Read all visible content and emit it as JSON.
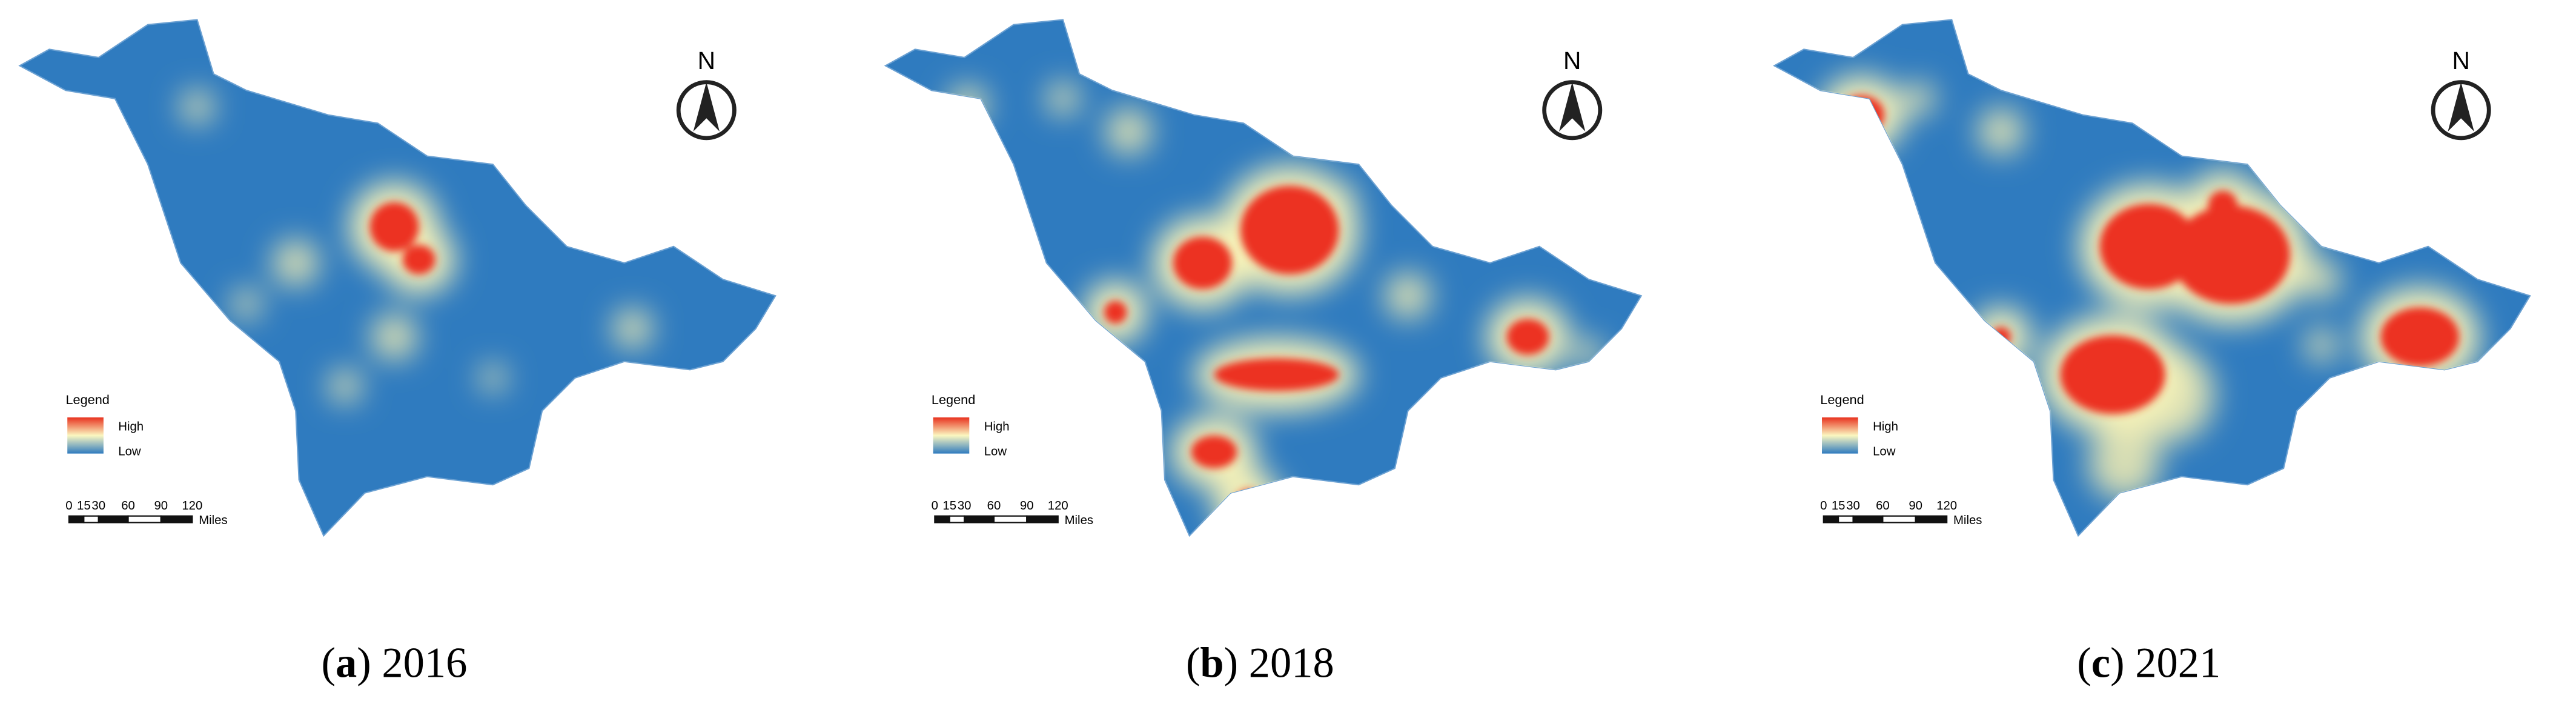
{
  "panels": [
    {
      "caption": [
        "(",
        "a",
        ") 2016"
      ]
    },
    {
      "caption": [
        "(",
        "b",
        ") 2018"
      ]
    },
    {
      "caption": [
        "(",
        "c",
        ") 2021"
      ]
    }
  ],
  "north": "N",
  "legend": {
    "title": "Legend",
    "high": "High",
    "low": "Low"
  },
  "scale": {
    "labels": [
      "0",
      "15",
      "30",
      "60",
      "90",
      "120"
    ],
    "unit": "Miles"
  }
}
